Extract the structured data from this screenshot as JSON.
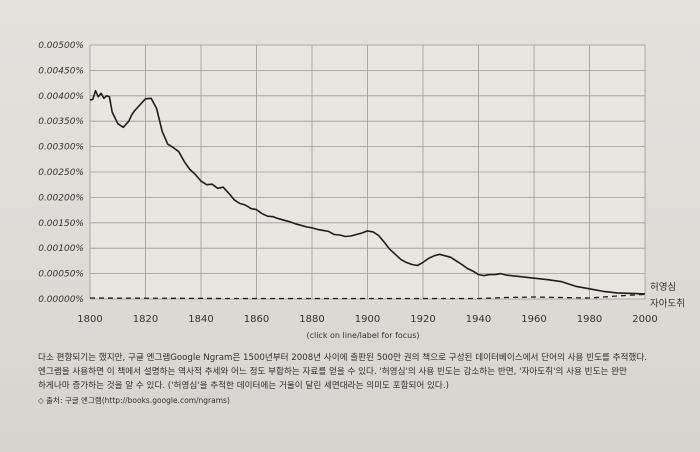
{
  "chart_data": {
    "type": "line",
    "x_range": [
      1800,
      2000
    ],
    "ylim": [
      0,
      0.005
    ],
    "y_ticks": [
      "0.00500%",
      "0.00450%",
      "0.00400%",
      "0.00350%",
      "0.00300%",
      "0.00250%",
      "0.00200%",
      "0.00150%",
      "0.00100%",
      "0.00050%",
      "0.00000%"
    ],
    "x_ticks": [
      "1800",
      "1820",
      "1840",
      "1860",
      "1880",
      "1900",
      "1920",
      "1940",
      "1960",
      "1980",
      "2000"
    ],
    "x_note": "(click on line/label for focus)",
    "grid": true,
    "series": [
      {
        "name": "허영심",
        "style": "solid",
        "x": [
          1800,
          1801,
          1802,
          1803,
          1804,
          1805,
          1806,
          1807,
          1808,
          1810,
          1812,
          1814,
          1815,
          1816,
          1818,
          1820,
          1822,
          1824,
          1826,
          1828,
          1830,
          1832,
          1834,
          1836,
          1838,
          1840,
          1842,
          1844,
          1846,
          1848,
          1850,
          1852,
          1854,
          1856,
          1858,
          1860,
          1862,
          1864,
          1866,
          1868,
          1870,
          1872,
          1874,
          1876,
          1878,
          1880,
          1882,
          1884,
          1886,
          1888,
          1890,
          1892,
          1894,
          1896,
          1898,
          1900,
          1902,
          1904,
          1906,
          1908,
          1910,
          1912,
          1914,
          1916,
          1918,
          1920,
          1922,
          1924,
          1926,
          1928,
          1930,
          1932,
          1934,
          1936,
          1938,
          1940,
          1942,
          1944,
          1946,
          1948,
          1950,
          1955,
          1960,
          1965,
          1970,
          1975,
          1980,
          1985,
          1990,
          1995,
          2000
        ],
        "values": [
          0.00392,
          0.00393,
          0.0041,
          0.00398,
          0.00405,
          0.00395,
          0.004,
          0.00398,
          0.00368,
          0.00345,
          0.00338,
          0.0035,
          0.00362,
          0.0037,
          0.00382,
          0.00394,
          0.00395,
          0.00375,
          0.0033,
          0.00305,
          0.00298,
          0.0029,
          0.0027,
          0.00255,
          0.00245,
          0.00232,
          0.00225,
          0.00226,
          0.00218,
          0.0022,
          0.00208,
          0.00195,
          0.00188,
          0.00185,
          0.00178,
          0.00176,
          0.00168,
          0.00163,
          0.00162,
          0.00158,
          0.00155,
          0.00152,
          0.00148,
          0.00145,
          0.00142,
          0.0014,
          0.00137,
          0.00135,
          0.00133,
          0.00127,
          0.00126,
          0.00123,
          0.00124,
          0.00127,
          0.0013,
          0.00134,
          0.00132,
          0.00125,
          0.00112,
          0.00098,
          0.00088,
          0.00078,
          0.00072,
          0.00068,
          0.00066,
          0.00072,
          0.0008,
          0.00085,
          0.00088,
          0.00085,
          0.00082,
          0.00075,
          0.00068,
          0.0006,
          0.00055,
          0.00048,
          0.00046,
          0.00048,
          0.00048,
          0.0005,
          0.00047,
          0.00044,
          0.00041,
          0.00038,
          0.00034,
          0.00025,
          0.0002,
          0.00015,
          0.00012,
          0.00011,
          0.0001
        ]
      },
      {
        "name": "자아도취",
        "style": "dashed",
        "x": [
          1800,
          1850,
          1900,
          1930,
          1940,
          1950,
          1960,
          1970,
          1980,
          1990,
          2000
        ],
        "values": [
          2e-05,
          1e-05,
          1e-05,
          1e-05,
          1e-05,
          3e-05,
          4e-05,
          3e-05,
          2e-05,
          6e-05,
          9e-05
        ]
      }
    ]
  },
  "caption": {
    "line1": "다소 편향되기는 했지만, 구글 엔그램Google Ngram은 1500년부터 2008년 사이에 출판된 500만 권의 책으로 구성된 데이터베이스에서 단어의 사용 빈도를 추적했다.",
    "line2": "엔그램을 사용하면 이 책에서 설명하는 역사적 추세와 어느 정도 부합하는 자료를 얻을 수 있다. '허영심'의 사용 빈도는 감소하는 반면, '자아도취'의 사용 빈도는 완만",
    "line3": "하게나마 증가하는 것을 알 수 있다. ('허영심'을 추적한 데이터에는 거울이 달린 세면대라는 의미도 포함되어 있다.)",
    "source": "◇ 출처: 구글 엔그램(http://books.google.com/ngrams)"
  },
  "colors": {
    "line": "#1e1e1e",
    "grid": "#9a9a9a",
    "plot_bg": "#e8e6e1"
  }
}
